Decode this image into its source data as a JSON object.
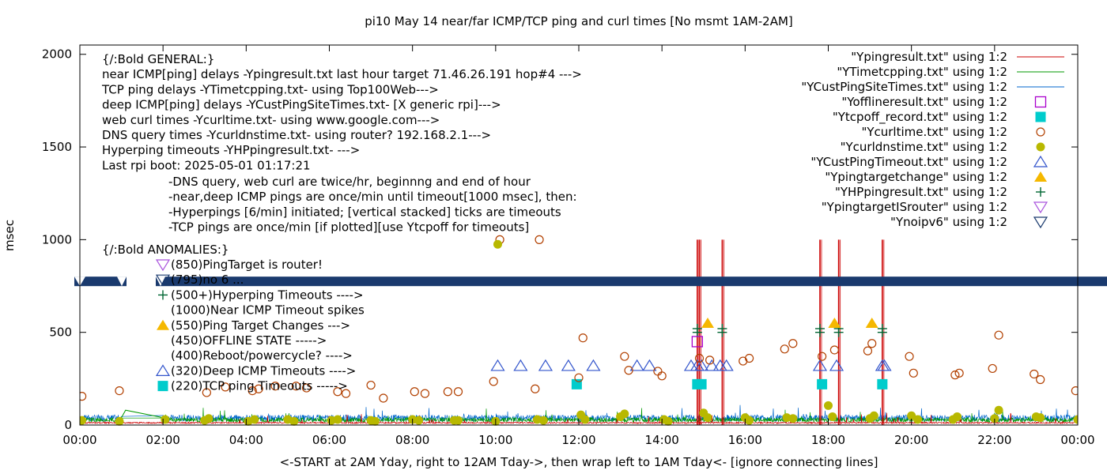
{
  "chart_data": {
    "type": "scatter",
    "title": "pi10 May 14  near/far ICMP/TCP ping and curl times [No msmt 1AM-2AM]",
    "xlabel": "<-START at 2AM Yday, right to 12AM Tday->, then wrap left to 1AM Tday<- [ignore connecting lines]",
    "ylabel": "msec",
    "xlim": [
      0,
      24
    ],
    "ylim": [
      0,
      2050
    ],
    "x_ticks": [
      {
        "v": 0,
        "label": "00:00"
      },
      {
        "v": 2,
        "label": "02:00"
      },
      {
        "v": 4,
        "label": "04:00"
      },
      {
        "v": 6,
        "label": "06:00"
      },
      {
        "v": 8,
        "label": "08:00"
      },
      {
        "v": 10,
        "label": "10:00"
      },
      {
        "v": 12,
        "label": "12:00"
      },
      {
        "v": 14,
        "label": "14:00"
      },
      {
        "v": 16,
        "label": "16:00"
      },
      {
        "v": 18,
        "label": "18:00"
      },
      {
        "v": 20,
        "label": "20:00"
      },
      {
        "v": 22,
        "label": "22:00"
      },
      {
        "v": 24,
        "label": "00:00"
      }
    ],
    "y_ticks": [
      {
        "v": 0,
        "label": "0"
      },
      {
        "v": 500,
        "label": "500"
      },
      {
        "v": 1000,
        "label": "1000"
      },
      {
        "v": 1500,
        "label": "1500"
      },
      {
        "v": 2000,
        "label": "2000"
      }
    ],
    "notes": [
      "{/:Bold GENERAL:}",
      "near ICMP[ping] delays -Ypingresult.txt last hour target 71.46.26.191 hop#4 --->",
      "TCP ping delays -YTimetcpping.txt- using Top100Web--->",
      "deep ICMP[ping] delays -YCustPingSiteTimes.txt- [X generic rpi]--->",
      "web curl times -Ycurltime.txt- using www.google.com--->",
      "DNS query times -Ycurldnstime.txt- using router? 192.168.2.1--->",
      "Hyperping timeouts -YHPpingresult.txt- --->",
      "Last rpi boot: 2025-05-01 01:17:21"
    ],
    "notes_indented": [
      "-DNS query, web curl are twice/hr, beginnng and end of hour",
      "-near,deep ICMP pings are once/min until timeout[1000 msec], then:",
      "  -Hyperpings [6/min] initiated; [vertical stacked] ticks are timeouts",
      "-TCP pings are once/min [if plotted][use Ytcpoff for timeouts]"
    ],
    "anomalies_title": "{/:Bold ANOMALIES:}",
    "anomalies": [
      {
        "marker": "tri-down-purple",
        "text": "(850)PingTarget is router!"
      },
      {
        "marker": "tri-down-navy",
        "text": "(795)no 6 ..."
      },
      {
        "marker": "plus",
        "text": "(500+)Hyperping Timeouts ---->"
      },
      {
        "marker": "none",
        "text": "(1000)Near ICMP Timeout spikes"
      },
      {
        "marker": "tri-up-orange",
        "text": "(550)Ping Target Changes --->"
      },
      {
        "marker": "none",
        "text": "(450)OFFLINE STATE ----->"
      },
      {
        "marker": "none",
        "text": "(400)Reboot/powercycle? ---->"
      },
      {
        "marker": "tri-up-blue",
        "text": "(320)Deep ICMP Timeouts ---->"
      },
      {
        "marker": "square-cyan",
        "text": "(220)TCP ping Timeouts ----->"
      }
    ],
    "legend": {
      "placement": "top-right",
      "using_label": "using 1:2",
      "entries": [
        {
          "name": "\"Ypingresult.txt\"",
          "marker": "line",
          "color": "#cc0000"
        },
        {
          "name": "\"YTimetcpping.txt\"",
          "marker": "line",
          "color": "#009900"
        },
        {
          "name": "\"YCustPingSiteTimes.txt\"",
          "marker": "line",
          "color": "#0066cc"
        },
        {
          "name": "\"Yofflineresult.txt\"",
          "marker": "square-open",
          "color": "#aa00cc"
        },
        {
          "name": "\"Ytcpoff_record.txt\"",
          "marker": "square-filled",
          "color": "#00cccc"
        },
        {
          "name": "\"Ycurltime.txt\"",
          "marker": "circle-open",
          "color": "#b24000"
        },
        {
          "name": "\"Ycurldnstime.txt\"",
          "marker": "circle-filled",
          "color": "#b8b800"
        },
        {
          "name": "\"YCustPingTimeout.txt\"",
          "marker": "tri-up-open",
          "color": "#3355cc"
        },
        {
          "name": "\"Ypingtargetchange\"",
          "marker": "tri-up-filled",
          "color": "#f5b800"
        },
        {
          "name": "\"YHPpingresult.txt\"",
          "marker": "plus",
          "color": "#006633"
        },
        {
          "name": "\"YpingtargetISrouter\"",
          "marker": "tri-down-open",
          "color": "#aa55dd"
        },
        {
          "name": "\"Ynoipv6\"",
          "marker": "tri-down-open",
          "color": "#1a3a6e"
        }
      ]
    },
    "noipv6_band_y": 775,
    "series": [
      {
        "name": "\"Ypingresult.txt\"",
        "kind": "spikes",
        "color": "#cc0000",
        "points": [
          [
            14.85,
            1000
          ],
          [
            14.9,
            1000
          ],
          [
            15.45,
            1000
          ],
          [
            17.8,
            1000
          ],
          [
            18.25,
            1000
          ],
          [
            19.3,
            1000
          ]
        ]
      },
      {
        "name": "\"YHPpingresult.txt\"",
        "kind": "plus-stack",
        "color": "#006633",
        "points": [
          [
            14.85,
            520
          ],
          [
            14.85,
            500
          ],
          [
            15.45,
            520
          ],
          [
            15.45,
            500
          ],
          [
            17.8,
            520
          ],
          [
            17.8,
            500
          ],
          [
            18.25,
            520
          ],
          [
            18.25,
            500
          ],
          [
            19.3,
            520
          ],
          [
            19.3,
            500
          ]
        ]
      },
      {
        "name": "\"Ytcpoff_record.txt\"",
        "kind": "square-filled",
        "color": "#00cccc",
        "points": [
          [
            11.95,
            220
          ],
          [
            14.85,
            220
          ],
          [
            14.95,
            220
          ],
          [
            17.85,
            220
          ],
          [
            19.3,
            220
          ]
        ]
      },
      {
        "name": "\"Yofflineresult.txt\"",
        "kind": "square-open",
        "color": "#aa00cc",
        "points": [
          [
            14.85,
            450
          ]
        ]
      },
      {
        "name": "\"YCustPingTimeout.txt\"",
        "kind": "tri-up-open",
        "color": "#3355cc",
        "points": [
          [
            10.05,
            320
          ],
          [
            10.6,
            320
          ],
          [
            11.2,
            320
          ],
          [
            11.75,
            320
          ],
          [
            12.35,
            320
          ],
          [
            13.4,
            320
          ],
          [
            13.7,
            320
          ],
          [
            14.7,
            320
          ],
          [
            14.85,
            320
          ],
          [
            14.95,
            320
          ],
          [
            15.2,
            320
          ],
          [
            15.4,
            320
          ],
          [
            15.55,
            320
          ],
          [
            17.8,
            320
          ],
          [
            18.2,
            320
          ],
          [
            19.3,
            320
          ],
          [
            19.35,
            320
          ]
        ]
      },
      {
        "name": "\"Ypingtargetchange\"",
        "kind": "tri-up-filled",
        "color": "#f5b800",
        "points": [
          [
            15.1,
            550
          ],
          [
            18.15,
            550
          ],
          [
            19.05,
            550
          ]
        ]
      },
      {
        "name": "\"Ycurltime.txt\"",
        "kind": "circle-open",
        "color": "#b24000",
        "points": [
          [
            0.05,
            155
          ],
          [
            0.95,
            185
          ],
          [
            3.05,
            175
          ],
          [
            3.5,
            205
          ],
          [
            4.15,
            185
          ],
          [
            4.3,
            195
          ],
          [
            4.7,
            210
          ],
          [
            5.2,
            210
          ],
          [
            5.45,
            200
          ],
          [
            6.2,
            180
          ],
          [
            6.4,
            170
          ],
          [
            7.0,
            215
          ],
          [
            7.3,
            145
          ],
          [
            8.05,
            180
          ],
          [
            8.3,
            170
          ],
          [
            8.85,
            180
          ],
          [
            9.1,
            180
          ],
          [
            9.95,
            235
          ],
          [
            10.1,
            1000
          ],
          [
            11.05,
            1000
          ],
          [
            10.95,
            195
          ],
          [
            12.1,
            470
          ],
          [
            12.0,
            255
          ],
          [
            13.1,
            370
          ],
          [
            13.2,
            295
          ],
          [
            13.9,
            290
          ],
          [
            14.0,
            265
          ],
          [
            14.9,
            360
          ],
          [
            15.15,
            350
          ],
          [
            15.95,
            345
          ],
          [
            16.1,
            360
          ],
          [
            16.95,
            410
          ],
          [
            17.15,
            440
          ],
          [
            17.85,
            370
          ],
          [
            18.15,
            405
          ],
          [
            18.95,
            400
          ],
          [
            19.05,
            440
          ],
          [
            19.95,
            370
          ],
          [
            20.05,
            280
          ],
          [
            21.05,
            270
          ],
          [
            21.15,
            280
          ],
          [
            21.95,
            305
          ],
          [
            22.1,
            485
          ],
          [
            22.95,
            275
          ],
          [
            23.1,
            245
          ],
          [
            23.95,
            185
          ]
        ]
      },
      {
        "name": "\"Ycurldnstime.txt\"",
        "kind": "circle-filled",
        "color": "#b8b800",
        "points": [
          [
            0.05,
            25
          ],
          [
            0.95,
            20
          ],
          [
            2.05,
            30
          ],
          [
            3.0,
            25
          ],
          [
            3.1,
            35
          ],
          [
            4.05,
            20
          ],
          [
            4.2,
            30
          ],
          [
            5.0,
            30
          ],
          [
            5.15,
            20
          ],
          [
            6.05,
            25
          ],
          [
            6.2,
            30
          ],
          [
            7.0,
            25
          ],
          [
            7.1,
            20
          ],
          [
            8.0,
            30
          ],
          [
            8.15,
            25
          ],
          [
            9.0,
            25
          ],
          [
            9.1,
            25
          ],
          [
            10.05,
            975
          ],
          [
            10.0,
            20
          ],
          [
            11.0,
            30
          ],
          [
            11.15,
            25
          ],
          [
            12.05,
            55
          ],
          [
            12.15,
            30
          ],
          [
            13.0,
            45
          ],
          [
            13.1,
            60
          ],
          [
            14.05,
            30
          ],
          [
            14.15,
            20
          ],
          [
            15.0,
            65
          ],
          [
            15.1,
            40
          ],
          [
            16.0,
            40
          ],
          [
            16.1,
            25
          ],
          [
            17.0,
            40
          ],
          [
            17.15,
            35
          ],
          [
            18.0,
            105
          ],
          [
            18.1,
            45
          ],
          [
            19.0,
            35
          ],
          [
            19.1,
            50
          ],
          [
            20.0,
            50
          ],
          [
            20.15,
            30
          ],
          [
            21.0,
            30
          ],
          [
            21.1,
            45
          ],
          [
            22.0,
            35
          ],
          [
            22.1,
            80
          ],
          [
            23.0,
            45
          ],
          [
            23.1,
            40
          ],
          [
            24.0,
            30
          ]
        ]
      }
    ]
  }
}
